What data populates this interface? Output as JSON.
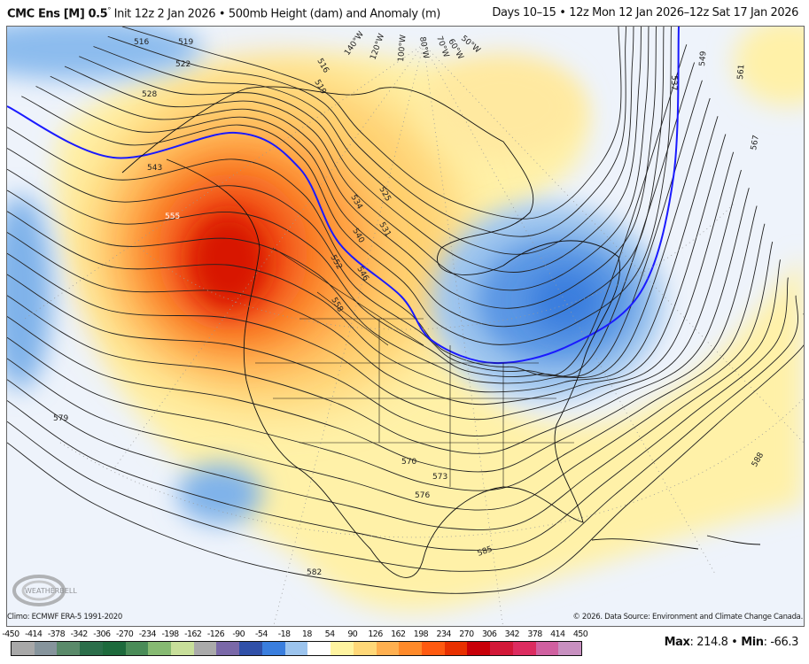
{
  "header": {
    "model": "CMC Ens [M] 0.5",
    "degree": "°",
    "init": "Init 12z 2 Jan 2026",
    "sep": "•",
    "field": "500mb Height (dam) and Anomaly (m)",
    "valid": "Days 10–15 • 12z Mon 12 Jan 2026–12z Sat 17 Jan 2026"
  },
  "map": {
    "longitude_labels": [
      "140°W",
      "120°W",
      "100°W",
      "80°W",
      "70°W",
      "60°W",
      "50°W"
    ],
    "contour_labels": [
      "516",
      "519",
      "522",
      "528",
      "543",
      "555",
      "516",
      "519",
      "534",
      "525",
      "531",
      "540",
      "552",
      "546",
      "558",
      "570",
      "573",
      "576",
      "579",
      "582",
      "585",
      "588",
      "537",
      "549",
      "561",
      "567"
    ],
    "highlight_contour_color": "#1a1aff",
    "logo": "WeatherBELL Analytics LLC"
  },
  "footer": {
    "climo": "Climo: ECMWF ERA-5 1991-2020",
    "credit": "© 2026. Data Source: Environment and Climate Change Canada."
  },
  "colorbar": {
    "labels": [
      "-450",
      "-414",
      "-378",
      "-342",
      "-306",
      "-270",
      "-234",
      "-198",
      "-162",
      "-126",
      "-90",
      "-54",
      "-18",
      "18",
      "54",
      "90",
      "126",
      "162",
      "198",
      "234",
      "270",
      "306",
      "342",
      "378",
      "414",
      "450"
    ],
    "colors": [
      "#a8a8a8",
      "#86949c",
      "#5a8a6a",
      "#2b6e4a",
      "#1d6a3c",
      "#4a8c58",
      "#86ba72",
      "#c8df9a",
      "#aaaaaa",
      "#7a68a8",
      "#3050a8",
      "#3a7ede",
      "#9cc4ee",
      "#ffffff",
      "#fff4a0",
      "#ffd878",
      "#ffb050",
      "#ff8a2a",
      "#ff5a10",
      "#e83000",
      "#c80008",
      "#d21838",
      "#dc2c60",
      "#d060a0",
      "#c890c0",
      "#c8aac8"
    ]
  },
  "stats": {
    "max_label": "Max",
    "max": "214.8",
    "min_label": "Min",
    "min": "-66.3",
    "sep": "•"
  }
}
